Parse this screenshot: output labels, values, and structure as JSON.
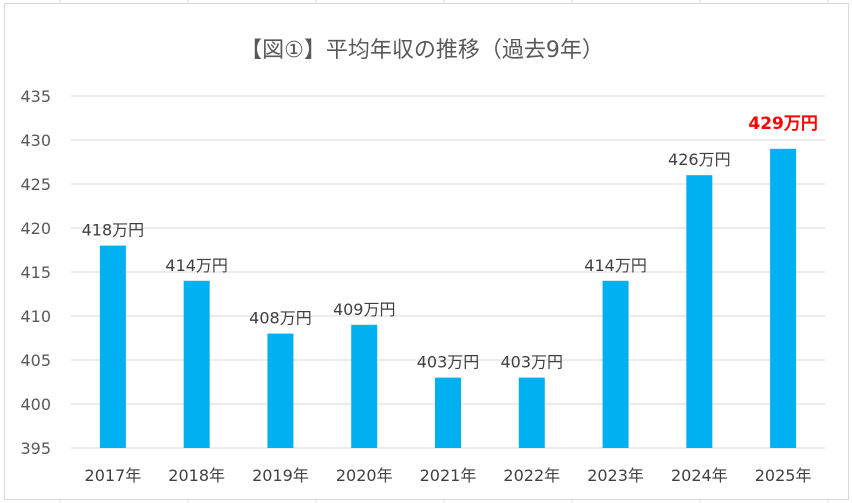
{
  "chart_data": {
    "type": "bar",
    "title": "【図①】平均年収の推移（過去9年）",
    "categories": [
      "2017年",
      "2018年",
      "2019年",
      "2020年",
      "2021年",
      "2022年",
      "2023年",
      "2024年",
      "2025年"
    ],
    "values": [
      418,
      414,
      408,
      409,
      403,
      403,
      414,
      426,
      429
    ],
    "data_labels": [
      "418万円",
      "414万円",
      "408万円",
      "409万円",
      "403万円",
      "403万円",
      "414万円",
      "426万円",
      "429万円"
    ],
    "highlight_index": 8,
    "ylim": [
      395,
      435
    ],
    "yticks": [
      395,
      400,
      405,
      410,
      415,
      420,
      425,
      430,
      435
    ],
    "xlabel": "",
    "ylabel": "",
    "grid": true,
    "legend": "none",
    "colors": {
      "bar": "#00b0f0",
      "highlight_label": "#ff0000",
      "gridline": "#d9d9d9",
      "text": "#595959"
    }
  }
}
